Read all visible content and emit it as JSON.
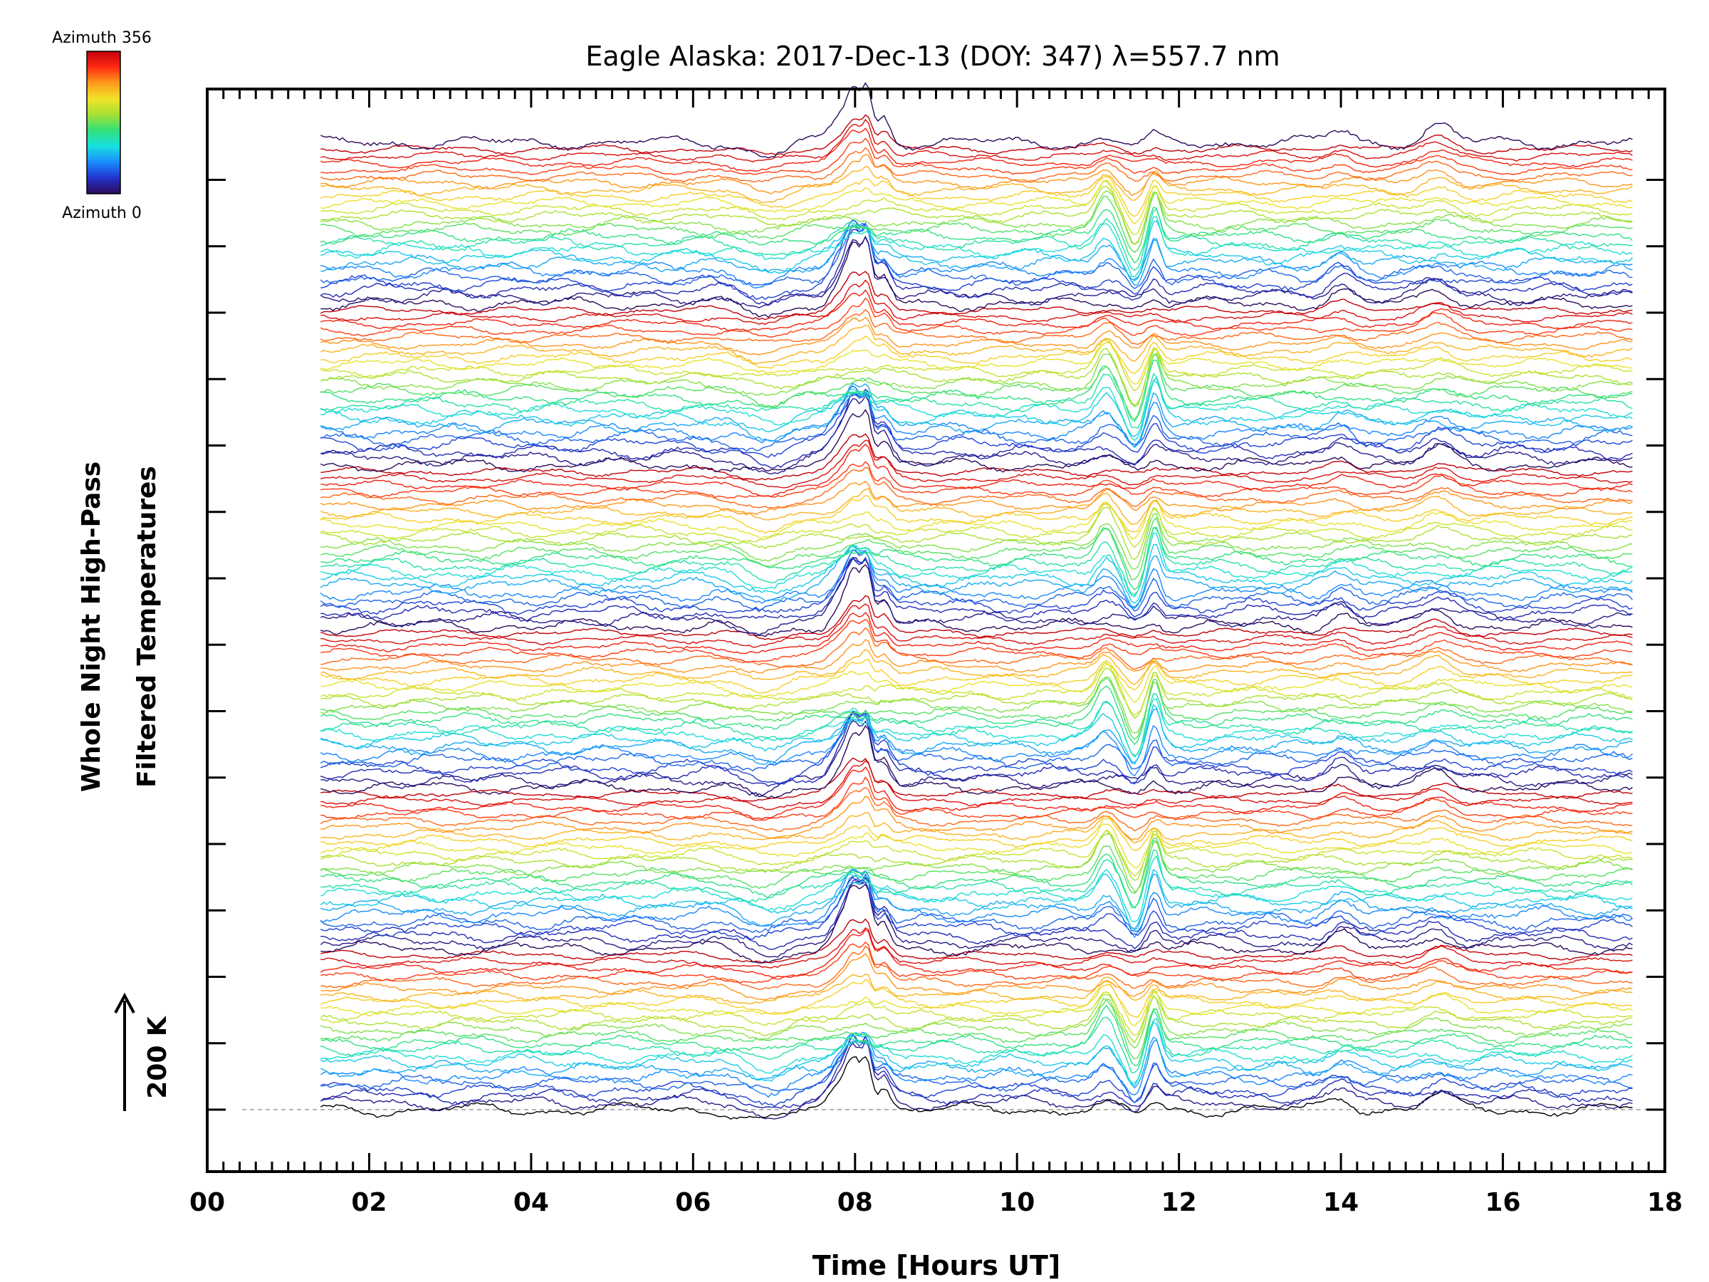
{
  "colorbar": {
    "top_label": "Azimuth 356",
    "bottom_label": "Azimuth 0",
    "colors": [
      "#2b0a5a",
      "#2233cc",
      "#1a8cff",
      "#18e0e0",
      "#32e07a",
      "#a6e033",
      "#f2e22a",
      "#ff9a1a",
      "#ff2a12",
      "#c2000a"
    ]
  },
  "scale_bar": {
    "label": "200 K",
    "value_k": 200
  },
  "chart_data": {
    "type": "line",
    "title": "Eagle Alaska: 2017-Dec-13 (DOY: 347) λ=557.7 nm",
    "xlabel": "Time [Hours UT]",
    "ylabel_line1": "Whole Night High-Pass",
    "ylabel_line2": "Filtered Temperatures",
    "xlim": [
      0,
      18
    ],
    "x_tick_labels": [
      "00",
      "02",
      "04",
      "06",
      "08",
      "10",
      "12",
      "14",
      "16",
      "18"
    ],
    "x_tick_values": [
      0,
      2,
      4,
      6,
      8,
      10,
      12,
      14,
      16,
      18
    ],
    "time_range": [
      1.4,
      17.6
    ],
    "n_traces": 145,
    "azimuth_range": [
      0,
      356
    ],
    "y_major_ticks": 15,
    "baseline_dashed": true,
    "features": [
      {
        "t": 8.0,
        "amp": 40,
        "width": 0.12,
        "sign": "positive"
      },
      {
        "t": 7.85,
        "amp": 25,
        "width": 0.18,
        "sign": "positive"
      },
      {
        "t": 8.15,
        "amp": 45,
        "width": 0.08,
        "sign": "positive"
      },
      {
        "t": 8.35,
        "amp": 25,
        "width": 0.12,
        "sign": "positive"
      },
      {
        "t": 11.1,
        "amp": 30,
        "width": 0.15,
        "sign": "positive"
      },
      {
        "t": 11.7,
        "amp": 35,
        "width": 0.1,
        "sign": "positive"
      },
      {
        "t": 11.45,
        "amp": 25,
        "width": 0.12,
        "sign": "negative"
      },
      {
        "t": 15.2,
        "amp": 18,
        "width": 0.25,
        "sign": "positive"
      },
      {
        "t": 14.0,
        "amp": 12,
        "width": 0.2,
        "sign": "positive"
      }
    ]
  }
}
